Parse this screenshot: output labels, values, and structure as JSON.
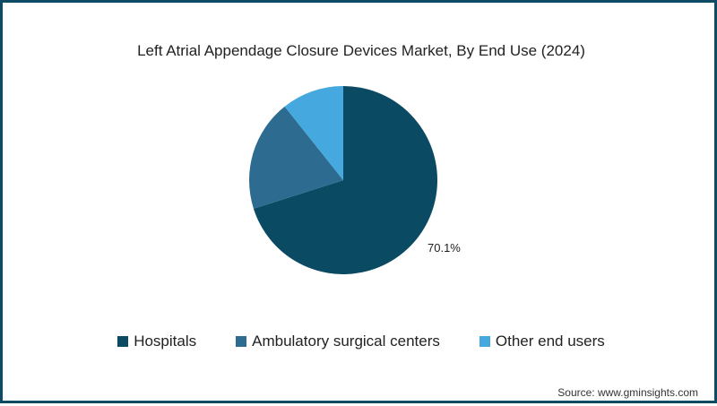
{
  "chart_data": {
    "type": "pie",
    "title": "Left Atrial Appendage Closure Devices Market, By End Use (2024)",
    "categories": [
      "Hospitals",
      "Ambulatory surgical centers",
      "Other end users"
    ],
    "values": [
      70.1,
      19.2,
      10.7
    ],
    "colors": [
      "#0b4a63",
      "#2e6b90",
      "#45a8de"
    ],
    "data_labels": [
      "70.1%"
    ],
    "legend_position": "bottom",
    "start_angle": "top, clockwise"
  },
  "title": "Left Atrial Appendage Closure Devices Market, By End Use (2024)",
  "label_hospitals": "70.1%",
  "legend": [
    {
      "label": "Hospitals",
      "color": "#0b4a63"
    },
    {
      "label": "Ambulatory surgical centers",
      "color": "#2e6b90"
    },
    {
      "label": "Other end users",
      "color": "#45a8de"
    }
  ],
  "source": "Source: www.gminsights.com"
}
